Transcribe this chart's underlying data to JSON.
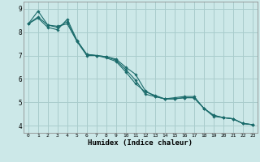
{
  "xlabel": "Humidex (Indice chaleur)",
  "background_color": "#cce8e8",
  "grid_color": "#a8cccc",
  "line_color": "#1a6b6b",
  "xlim": [
    -0.5,
    23.5
  ],
  "ylim": [
    3.7,
    9.3
  ],
  "yticks": [
    4,
    5,
    6,
    7,
    8,
    9
  ],
  "xticks": [
    0,
    1,
    2,
    3,
    4,
    5,
    6,
    7,
    8,
    9,
    10,
    11,
    12,
    13,
    14,
    15,
    16,
    17,
    18,
    19,
    20,
    21,
    22,
    23
  ],
  "series": [
    [
      8.35,
      8.9,
      8.3,
      8.25,
      8.35,
      7.6,
      7.0,
      7.0,
      6.9,
      6.75,
      6.3,
      5.8,
      5.45,
      5.3,
      5.15,
      5.2,
      5.25,
      5.25,
      4.75,
      4.4,
      4.35,
      4.3,
      4.1,
      4.05
    ],
    [
      8.35,
      8.6,
      8.2,
      8.1,
      8.55,
      7.65,
      7.05,
      7.0,
      6.95,
      6.85,
      6.5,
      6.2,
      5.5,
      5.25,
      5.15,
      5.15,
      5.2,
      5.2,
      4.75,
      4.45,
      4.35,
      4.3,
      4.1,
      4.05
    ],
    [
      8.35,
      8.65,
      8.3,
      8.2,
      8.45,
      7.6,
      7.05,
      7.0,
      6.95,
      6.8,
      6.4,
      5.95,
      5.35,
      5.25,
      5.15,
      5.15,
      5.2,
      5.2,
      4.75,
      4.45,
      4.35,
      4.3,
      4.1,
      4.05
    ]
  ]
}
